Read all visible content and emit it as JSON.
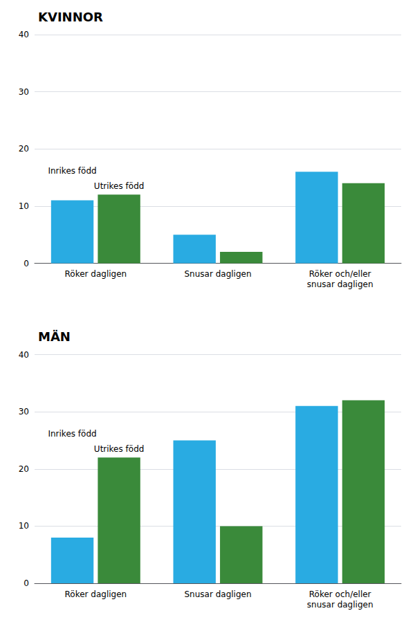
{
  "chart_data": [
    {
      "type": "bar",
      "title": "KVINNOR",
      "categories": [
        "Röker dagligen",
        "Snusar dagligen",
        "Röker och/eller\nsnusar dagligen"
      ],
      "series": [
        {
          "name": "Inrikes född",
          "color": "#29ABE2",
          "values": [
            11,
            5,
            16
          ]
        },
        {
          "name": "Utrikes född",
          "color": "#3A8A3A",
          "values": [
            12,
            2,
            14
          ]
        }
      ],
      "ylim": [
        0,
        40
      ],
      "yticks": [
        0,
        10,
        20,
        30,
        40
      ],
      "grid": true
    },
    {
      "type": "bar",
      "title": "MÄN",
      "categories": [
        "Röker dagligen",
        "Snusar dagligen",
        "Röker och/eller\nsnusar dagligen"
      ],
      "series": [
        {
          "name": "Inrikes född",
          "color": "#29ABE2",
          "values": [
            8,
            25,
            31
          ]
        },
        {
          "name": "Utrikes född",
          "color": "#3A8A3A",
          "values": [
            22,
            10,
            32
          ]
        }
      ],
      "ylim": [
        0,
        40
      ],
      "yticks": [
        0,
        10,
        20,
        30,
        40
      ],
      "grid": true
    }
  ]
}
